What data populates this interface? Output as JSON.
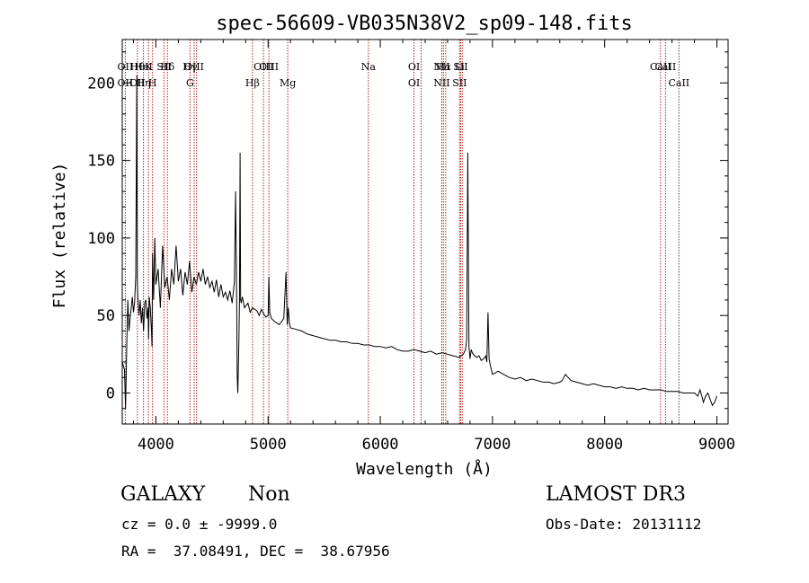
{
  "chart_data": {
    "type": "line",
    "title": "spec-56609-VB035N38V2_sp09-148.fits",
    "xlabel": "Wavelength (Å)",
    "ylabel": "Flux (relative)",
    "xlim": [
      3700,
      9100
    ],
    "ylim": [
      -20,
      228
    ],
    "xticks": [
      4000,
      5000,
      6000,
      7000,
      8000,
      9000
    ],
    "yticks": [
      0,
      50,
      100,
      150,
      200
    ],
    "grid": false,
    "line_marker_color": "#b22222",
    "series": [
      {
        "name": "flux",
        "x": [
          3700,
          3720,
          3730,
          3740,
          3750,
          3760,
          3770,
          3780,
          3790,
          3800,
          3810,
          3820,
          3830,
          3835,
          3840,
          3845,
          3850,
          3860,
          3870,
          3880,
          3890,
          3900,
          3910,
          3920,
          3930,
          3935,
          3940,
          3950,
          3960,
          3965,
          3970,
          3980,
          3990,
          4000,
          4020,
          4040,
          4060,
          4080,
          4100,
          4120,
          4140,
          4160,
          4180,
          4200,
          4220,
          4240,
          4260,
          4280,
          4300,
          4320,
          4340,
          4360,
          4380,
          4400,
          4420,
          4440,
          4460,
          4480,
          4500,
          4520,
          4540,
          4560,
          4580,
          4600,
          4620,
          4640,
          4660,
          4680,
          4700,
          4710,
          4720,
          4725,
          4730,
          4740,
          4745,
          4750,
          4755,
          4760,
          4770,
          4790,
          4800,
          4820,
          4840,
          4860,
          4880,
          4900,
          4920,
          4940,
          4960,
          4980,
          5000,
          5007,
          5015,
          5030,
          5060,
          5100,
          5140,
          5160,
          5170,
          5180,
          5190,
          5200,
          5250,
          5300,
          5350,
          5400,
          5450,
          5500,
          5550,
          5600,
          5650,
          5700,
          5750,
          5800,
          5850,
          5900,
          5950,
          6000,
          6050,
          6100,
          6150,
          6200,
          6250,
          6300,
          6350,
          6400,
          6450,
          6500,
          6550,
          6600,
          6650,
          6700,
          6740,
          6760,
          6770,
          6780,
          6790,
          6800,
          6810,
          6820,
          6840,
          6860,
          6880,
          6900,
          6920,
          6940,
          6950,
          6960,
          6970,
          6980,
          7000,
          7050,
          7100,
          7150,
          7200,
          7250,
          7300,
          7350,
          7400,
          7450,
          7500,
          7550,
          7600,
          7620,
          7650,
          7700,
          7750,
          7800,
          7850,
          7900,
          7950,
          8000,
          8050,
          8100,
          8150,
          8200,
          8250,
          8300,
          8350,
          8400,
          8450,
          8500,
          8550,
          8600,
          8650,
          8700,
          8750,
          8800,
          8830,
          8850,
          8870,
          8880,
          8900,
          8920,
          8940,
          8960,
          8980,
          9000
        ],
        "values": [
          20,
          15,
          -10,
          30,
          60,
          40,
          48,
          55,
          62,
          52,
          58,
          75,
          205,
          70,
          60,
          55,
          50,
          60,
          45,
          55,
          40,
          58,
          60,
          48,
          55,
          35,
          62,
          55,
          40,
          30,
          90,
          60,
          100,
          70,
          80,
          55,
          95,
          68,
          75,
          60,
          80,
          70,
          95,
          72,
          80,
          63,
          78,
          70,
          85,
          65,
          75,
          70,
          78,
          72,
          80,
          70,
          75,
          68,
          72,
          65,
          73,
          62,
          70,
          62,
          65,
          60,
          66,
          58,
          72,
          130,
          60,
          10,
          0,
          35,
          60,
          155,
          60,
          58,
          62,
          55,
          56,
          58,
          52,
          55,
          54,
          53,
          50,
          54,
          51,
          49,
          50,
          75,
          52,
          48,
          46,
          44,
          48,
          78,
          44,
          55,
          45,
          42,
          41,
          40,
          38,
          37,
          36,
          35,
          34,
          34,
          33,
          33,
          32,
          32,
          31,
          31,
          30,
          30,
          29,
          30,
          28,
          27,
          27,
          28,
          27,
          26,
          27,
          25,
          26,
          25,
          24,
          23,
          25,
          28,
          35,
          155,
          30,
          22,
          28,
          26,
          24,
          23,
          24,
          21,
          22,
          24,
          20,
          52,
          22,
          18,
          12,
          14,
          12,
          10,
          9,
          10,
          8,
          9,
          8,
          7,
          7,
          6,
          7,
          8,
          12,
          8,
          7,
          6,
          5,
          6,
          5,
          4,
          4,
          3,
          4,
          3,
          3,
          2,
          3,
          2,
          2,
          2,
          1,
          1,
          1,
          0,
          0,
          0,
          -2,
          2,
          -3,
          -6,
          -2,
          0,
          -4,
          -8,
          -6,
          -2
        ]
      }
    ],
    "lines": [
      {
        "wave": 3727,
        "top": "OII",
        "bottom": "OII"
      },
      {
        "wave": 3835,
        "top": "Hθ",
        "bottom": "OII"
      },
      {
        "wave": 3889,
        "top": "HeI",
        "bottom": "Hη"
      },
      {
        "wave": 3934,
        "top": "K",
        "bottom": ""
      },
      {
        "wave": 3970,
        "top": "",
        "bottom": "H"
      },
      {
        "wave": 4072,
        "top": "SII",
        "bottom": ""
      },
      {
        "wave": 4102,
        "top": "Hδ",
        "bottom": ""
      },
      {
        "wave": 4304,
        "top": "Hγ",
        "bottom": "G"
      },
      {
        "wave": 4341,
        "top": "OIII",
        "bottom": ""
      },
      {
        "wave": 4363,
        "top": "",
        "bottom": ""
      },
      {
        "wave": 4861,
        "top": "",
        "bottom": "Hβ"
      },
      {
        "wave": 4959,
        "top": "OIII",
        "bottom": ""
      },
      {
        "wave": 5007,
        "top": "OIII",
        "bottom": ""
      },
      {
        "wave": 5175,
        "top": "",
        "bottom": "Mg"
      },
      {
        "wave": 5894,
        "top": "Na",
        "bottom": ""
      },
      {
        "wave": 6300,
        "top": "OI",
        "bottom": "OI"
      },
      {
        "wave": 6364,
        "top": "",
        "bottom": ""
      },
      {
        "wave": 6548,
        "top": "NII",
        "bottom": "NII"
      },
      {
        "wave": 6563,
        "top": "Hα",
        "bottom": ""
      },
      {
        "wave": 6583,
        "top": "",
        "bottom": ""
      },
      {
        "wave": 6707,
        "top": "Li",
        "bottom": "SII"
      },
      {
        "wave": 6716,
        "top": "SII",
        "bottom": ""
      },
      {
        "wave": 6731,
        "top": "",
        "bottom": ""
      },
      {
        "wave": 8498,
        "top": "CaII",
        "bottom": ""
      },
      {
        "wave": 8542,
        "top": "CaII",
        "bottom": ""
      },
      {
        "wave": 8662,
        "top": "",
        "bottom": "CaII"
      }
    ]
  },
  "info": {
    "class": "GALAXY",
    "subclass": "Non",
    "survey": "LAMOST DR3",
    "cz": "cz = 0.0 ± -9999.0",
    "obs_date": "Obs-Date: 20131112",
    "coords": "RA =  37.08491, DEC =  38.67956"
  }
}
